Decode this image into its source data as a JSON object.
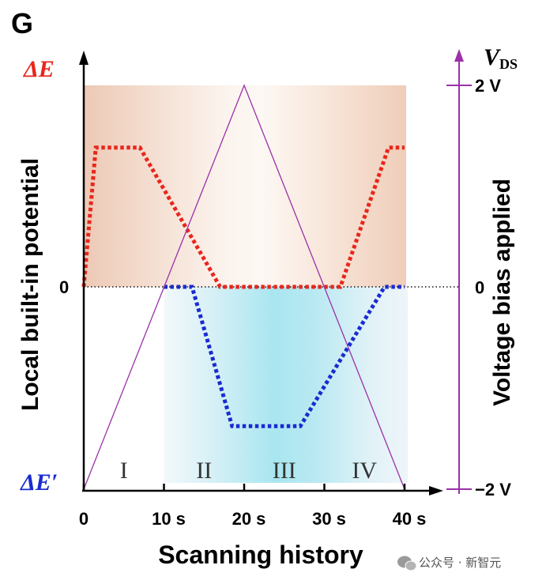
{
  "panel_label": "G",
  "watermark": "公众号 · 新智元",
  "colors": {
    "delta_e": "#e8261c",
    "delta_e_prime": "#1a2bd0",
    "vds": "#9b30a8",
    "warm_band": "#efcfbd",
    "cool_band": "#a8e6ef"
  },
  "chart_data": {
    "type": "line",
    "xlabel": "Scanning history",
    "ylabel_left": "Local built-in potential",
    "ylabel_right": "Voltage bias applied",
    "left_top_label": "ΔE",
    "left_bottom_label": "ΔE′",
    "left_zero_label": "0",
    "right_axis_symbol": "V",
    "right_axis_subscript": "DS",
    "right_ticks": [
      "2 V",
      "0",
      "−2 V"
    ],
    "right_tick_values": [
      2,
      0,
      -2
    ],
    "x_ticks": [
      "0",
      "10 s",
      "20 s",
      "30 s",
      "40 s"
    ],
    "x_tick_values": [
      0,
      10,
      20,
      30,
      40
    ],
    "xlim": [
      0,
      40
    ],
    "ylim_right": [
      -2,
      2
    ],
    "ylim_left": [
      -1,
      1
    ],
    "regions": [
      "I",
      "II",
      "III",
      "IV"
    ],
    "region_centers": [
      5,
      15,
      25,
      35
    ],
    "series": [
      {
        "name": "ΔE",
        "style": "dotted",
        "x": [
          0,
          1.5,
          7,
          17,
          32,
          38,
          40
        ],
        "y": [
          0,
          0.86,
          0.86,
          0,
          0,
          0.86,
          0.86
        ]
      },
      {
        "name": "ΔE′",
        "style": "dotted",
        "x": [
          10,
          13.5,
          18.5,
          27,
          37.5,
          40
        ],
        "y": [
          0,
          0,
          -0.86,
          -0.86,
          0,
          0
        ]
      },
      {
        "name": "V_DS",
        "style": "solid",
        "x": [
          0,
          20,
          40
        ],
        "y": [
          -2,
          2,
          -2
        ]
      }
    ]
  }
}
